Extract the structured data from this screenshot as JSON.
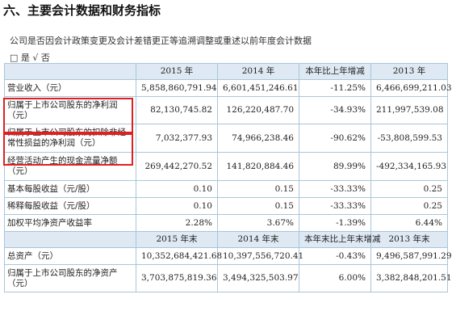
{
  "title": "六、主要会计数据和财务指标",
  "note": "公司是否因会计政策变更及会计差错更正等追溯调整或重述以前年度会计数据",
  "yes_no": "□ 是 √ 否",
  "table1": {
    "headers": [
      "",
      "2015 年",
      "2014 年",
      "本年比上年增减",
      "2013 年"
    ],
    "rows": [
      {
        "label": "营业收入（元）",
        "v2015": "5,858,860,791.94",
        "v2014": "6,601,451,246.61",
        "change": "-11.25%",
        "v2013": "6,466,699,211.03"
      },
      {
        "label": "归属于上市公司股东的净利润（元）",
        "v2015": "82,130,745.82",
        "v2014": "126,220,487.70",
        "change": "-34.93%",
        "v2013": "211,997,539.08"
      },
      {
        "label": "归属于上市公司股东的扣除非经常性损益的净利润（元）",
        "v2015": "7,032,377.93",
        "v2014": "74,966,238.46",
        "change": "-90.62%",
        "v2013": "-53,808,599.53"
      },
      {
        "label": "经营活动产生的现金流量净额（元）",
        "v2015": "269,442,270.52",
        "v2014": "141,820,884.46",
        "change": "89.99%",
        "v2013": "-492,334,165.93"
      },
      {
        "label": "基本每股收益（元/股）",
        "v2015": "0.10",
        "v2014": "0.15",
        "change": "-33.33%",
        "v2013": "0.25"
      },
      {
        "label": "稀释每股收益（元/股）",
        "v2015": "0.10",
        "v2014": "0.15",
        "change": "-33.33%",
        "v2013": "0.25"
      },
      {
        "label": "加权平均净资产收益率",
        "v2015": "2.28%",
        "v2014": "3.67%",
        "change": "-1.39%",
        "v2013": "6.44%"
      }
    ]
  },
  "table2": {
    "headers": [
      "",
      "2015 年末",
      "2014 年末",
      "本年末比上年末增减",
      "2013 年末"
    ],
    "rows": [
      {
        "label": "总资产（元）",
        "v2015": "10,352,684,421.68",
        "v2014": "10,397,556,720.41",
        "change": "-0.43%",
        "v2013": "9,496,587,991.29"
      },
      {
        "label": "归属于上市公司股东的净资产（元）",
        "v2015": "3,703,875,819.36",
        "v2014": "3,494,325,503.97",
        "change": "6.00%",
        "v2013": "3,382,848,201.51"
      }
    ]
  }
}
